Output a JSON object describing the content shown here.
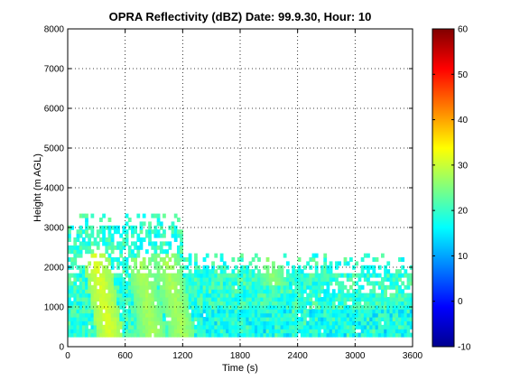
{
  "chart_data": {
    "type": "heatmap",
    "title": "OPRA Reflectivity (dBZ)  Date: 99.9.30, Hour: 10",
    "xlabel": "Time (s)",
    "ylabel": "Height (m AGL)",
    "xlim": [
      0,
      3600
    ],
    "ylim": [
      0,
      8000
    ],
    "xticks": [
      "0",
      "600",
      "1200",
      "1800",
      "2400",
      "3000",
      "3600"
    ],
    "yticks": [
      "0",
      "1000",
      "2000",
      "3000",
      "4000",
      "5000",
      "6000",
      "7000",
      "8000"
    ],
    "grid": true,
    "colormap": "jet",
    "colorbar": {
      "range": [
        -10,
        60
      ],
      "ticks": [
        "-10",
        "0",
        "10",
        "20",
        "30",
        "40",
        "50",
        "60"
      ]
    },
    "echo_layer": {
      "base_height": 250,
      "top_height_before_1200s": 3000,
      "top_height_after_1200s": 2000,
      "typical_value": 20,
      "bands": [
        {
          "x_start": 270,
          "x_end": 430,
          "y_start": 2300,
          "y_end": 250,
          "value": 30
        },
        {
          "x_start": 740,
          "x_end": 870,
          "y_start": 2200,
          "y_end": 250,
          "value": 27
        },
        {
          "x_start": 1000,
          "x_end": 1180,
          "y_start": 2300,
          "y_end": 250,
          "value": 27
        },
        {
          "x_start": 2050,
          "x_end": 2150,
          "y_start": 2600,
          "y_end": 1500,
          "value": 25
        }
      ]
    }
  }
}
